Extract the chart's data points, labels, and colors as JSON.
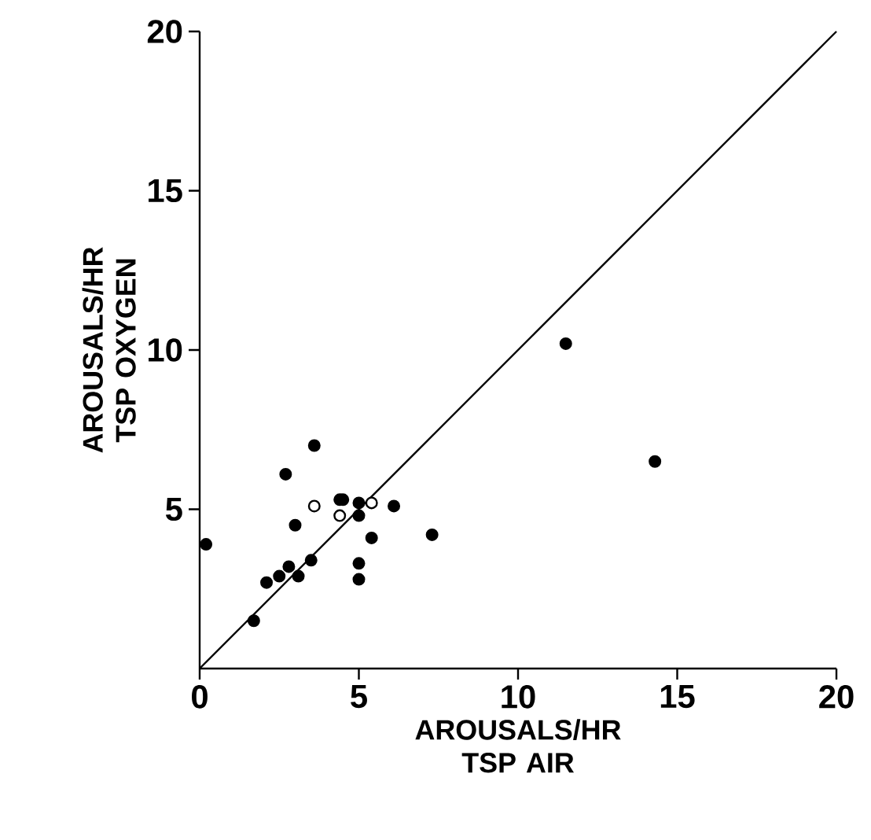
{
  "chart_data": {
    "type": "scatter",
    "xlabel": "AROUSALS/HR TSP AIR",
    "ylabel": "AROUSALS/HR TSP OXYGEN",
    "xlim": [
      0,
      20
    ],
    "ylim": [
      0,
      20
    ],
    "xticks": [
      0,
      5,
      10,
      15,
      20
    ],
    "yticks": [
      5,
      10,
      15,
      20
    ],
    "series": [
      {
        "color": "#000000",
        "marker": "circle",
        "x": [
          0.2,
          1.7,
          2.1,
          2.5,
          2.7,
          2.8,
          3.0,
          3.1,
          3.5,
          3.6,
          4.4,
          4.5,
          5.0,
          5.0,
          5.0,
          5.0,
          5.4,
          6.1,
          7.3,
          11.5,
          14.3
        ],
        "values": [
          3.9,
          1.5,
          2.7,
          2.9,
          6.1,
          3.2,
          4.5,
          2.9,
          3.4,
          7.0,
          5.3,
          5.3,
          5.2,
          4.8,
          3.3,
          2.8,
          4.1,
          5.1,
          4.2,
          10.2,
          6.5
        ]
      },
      {
        "color": "#ffffff",
        "marker": "circle",
        "x": [
          3.6,
          4.4,
          5.4
        ],
        "values": [
          5.1,
          4.8,
          5.2
        ]
      },
      {
        "type": "line",
        "color": "#000000",
        "x": [
          0,
          20
        ],
        "values": [
          0,
          20
        ],
        "marker": "none"
      }
    ]
  }
}
